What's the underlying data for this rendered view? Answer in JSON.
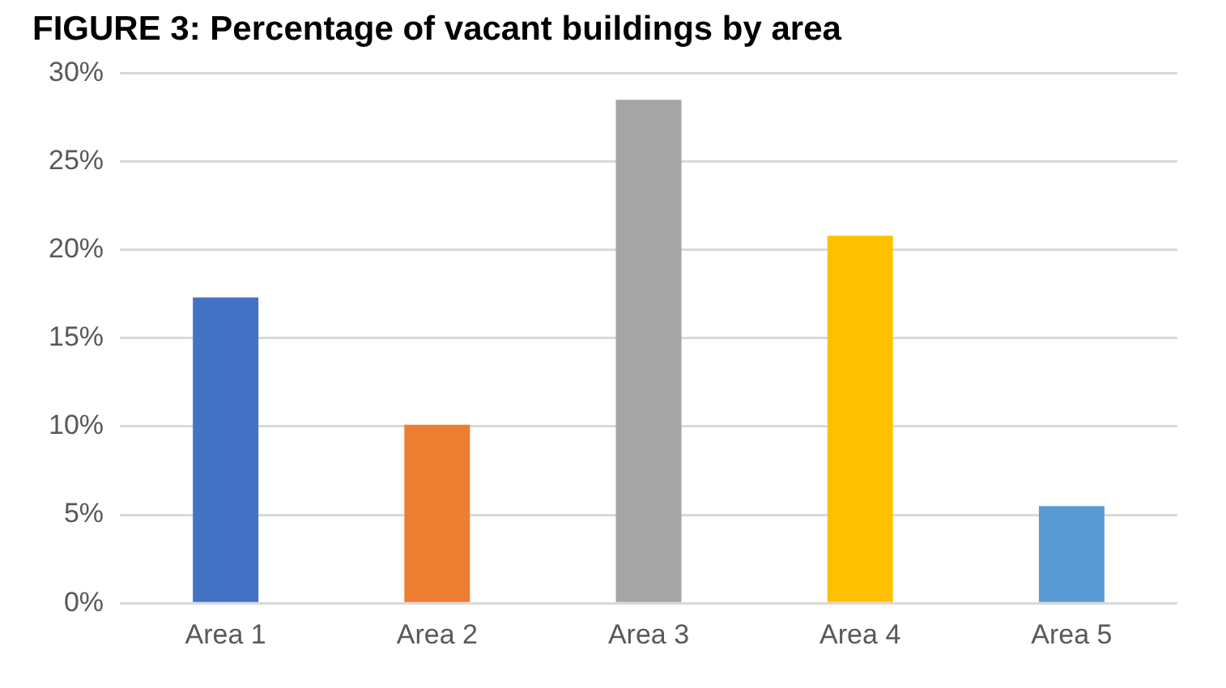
{
  "chart_data": {
    "type": "bar",
    "title": "FIGURE 3: Percentage of vacant buildings by area",
    "categories": [
      "Area 1",
      "Area 2",
      "Area 3",
      "Area 4",
      "Area 5"
    ],
    "values": [
      17.3,
      10.1,
      28.5,
      20.8,
      5.5
    ],
    "colors": [
      "#4472c4",
      "#ed7d31",
      "#a5a5a5",
      "#ffc000",
      "#5b9bd5"
    ],
    "ylim": [
      0,
      30
    ],
    "yticks": [
      {
        "value": 0,
        "label": "0%"
      },
      {
        "value": 5,
        "label": "5%"
      },
      {
        "value": 10,
        "label": "10%"
      },
      {
        "value": 15,
        "label": "15%"
      },
      {
        "value": 20,
        "label": "20%"
      },
      {
        "value": 25,
        "label": "25%"
      },
      {
        "value": 30,
        "label": "30%"
      }
    ],
    "grid": "y"
  }
}
